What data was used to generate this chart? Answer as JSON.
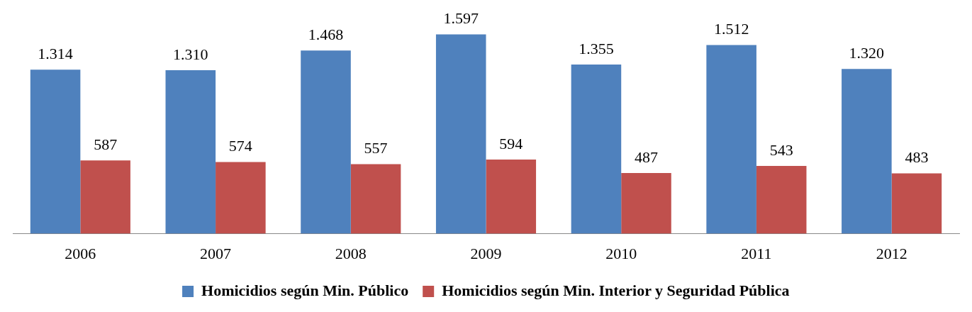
{
  "chart_data": {
    "type": "bar",
    "categories": [
      "2006",
      "2007",
      "2008",
      "2009",
      "2010",
      "2011",
      "2012"
    ],
    "series": [
      {
        "name": "Homicidios según Min. Público",
        "color": "#4f81bd",
        "values": [
          1314,
          1310,
          1468,
          1597,
          1355,
          1512,
          1320
        ],
        "value_labels": [
          "1.314",
          "1.310",
          "1.468",
          "1.597",
          "1.355",
          "1.512",
          "1.320"
        ]
      },
      {
        "name": "Homicidios según Min. Interior y Seguridad Pública",
        "color": "#c0504d",
        "values": [
          587,
          574,
          557,
          594,
          487,
          543,
          483
        ],
        "value_labels": [
          "587",
          "574",
          "557",
          "594",
          "487",
          "543",
          "483"
        ]
      }
    ],
    "legend": "bottom",
    "tick_labels": "x",
    "grid": false
  }
}
